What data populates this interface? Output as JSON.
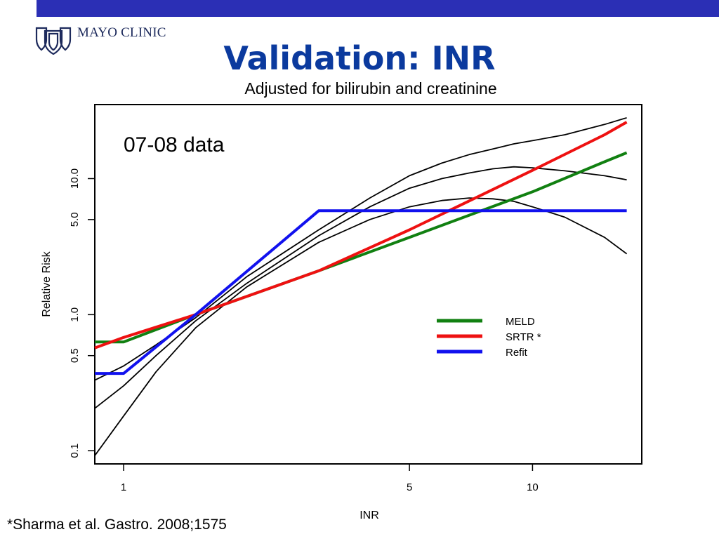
{
  "header": {
    "logo_text": "MAYO CLINIC",
    "title": "Validation: INR",
    "bar_color": "#2B2FB5",
    "title_color": "#0B3A9E"
  },
  "footnote": "*Sharma et al. Gastro. 2008;1575",
  "chart_data": {
    "type": "line",
    "title": "Adjusted for bilirubin and creatinine",
    "annotation": "07-08 data",
    "xlabel": "INR",
    "ylabel": "Relative Risk",
    "xscale": "log",
    "yscale": "log",
    "xlim": [
      0.85,
      18.5
    ],
    "ylim": [
      0.08,
      35
    ],
    "xticks": [
      1,
      5,
      10
    ],
    "xtick_labels": [
      "1",
      "5",
      "10"
    ],
    "yticks": [
      0.1,
      0.5,
      1.0,
      5.0,
      10.0
    ],
    "ytick_labels": [
      "0.1",
      "0.5",
      "1.0",
      "5.0",
      "10.0"
    ],
    "grid": false,
    "legend": "center-right",
    "series": [
      {
        "name": "MELD",
        "color": "#118011",
        "x": [
          0.85,
          1.0,
          1.5,
          3.0,
          5.0,
          10.0,
          15.0,
          17.0
        ],
        "y": [
          0.63,
          0.63,
          1.0,
          2.1,
          3.7,
          8.0,
          13.3,
          15.5
        ]
      },
      {
        "name": "SRTR *",
        "color": "#EE1111",
        "x": [
          0.85,
          1.0,
          1.5,
          3.0,
          5.0,
          10.0,
          15.0,
          17.0
        ],
        "y": [
          0.57,
          0.68,
          1.0,
          2.1,
          4.2,
          11.5,
          21.0,
          26.0
        ]
      },
      {
        "name": "Refit",
        "color": "#1111EE",
        "x": [
          0.85,
          1.0,
          1.5,
          3.0,
          5.0,
          10.0,
          15.0,
          17.0
        ],
        "y": [
          0.37,
          0.37,
          1.0,
          5.8,
          5.8,
          5.8,
          5.8,
          5.8
        ]
      }
    ],
    "curves": [
      {
        "role": "fitted",
        "color": "#000000",
        "x": [
          0.85,
          1.0,
          1.2,
          1.5,
          2.0,
          3.0,
          4.0,
          5.0,
          6.0,
          7.0,
          8.0,
          9.0,
          10.0,
          12.0,
          15.0,
          17.0
        ],
        "y": [
          0.205,
          0.3,
          0.5,
          0.9,
          1.7,
          3.8,
          6.2,
          8.5,
          10.0,
          11.0,
          11.8,
          12.2,
          12.0,
          11.4,
          10.5,
          9.8
        ]
      },
      {
        "role": "lower",
        "color": "#000000",
        "x": [
          0.85,
          1.0,
          1.2,
          1.5,
          2.0,
          3.0,
          4.0,
          5.0,
          6.0,
          7.0,
          8.0,
          9.0,
          10.0,
          12.0,
          15.0,
          17.0
        ],
        "y": [
          0.092,
          0.18,
          0.38,
          0.8,
          1.6,
          3.4,
          5.0,
          6.2,
          6.9,
          7.2,
          7.1,
          6.8,
          6.2,
          5.2,
          3.7,
          2.8
        ]
      },
      {
        "role": "upper",
        "color": "#000000",
        "x": [
          0.85,
          1.0,
          1.2,
          1.5,
          2.0,
          3.0,
          4.0,
          5.0,
          6.0,
          7.0,
          8.0,
          9.0,
          10.0,
          12.0,
          15.0,
          17.0
        ],
        "y": [
          0.33,
          0.42,
          0.6,
          0.95,
          1.9,
          4.2,
          7.2,
          10.5,
          13.0,
          15.0,
          16.5,
          18.0,
          19.0,
          21.0,
          25.0,
          28.0
        ]
      }
    ]
  }
}
